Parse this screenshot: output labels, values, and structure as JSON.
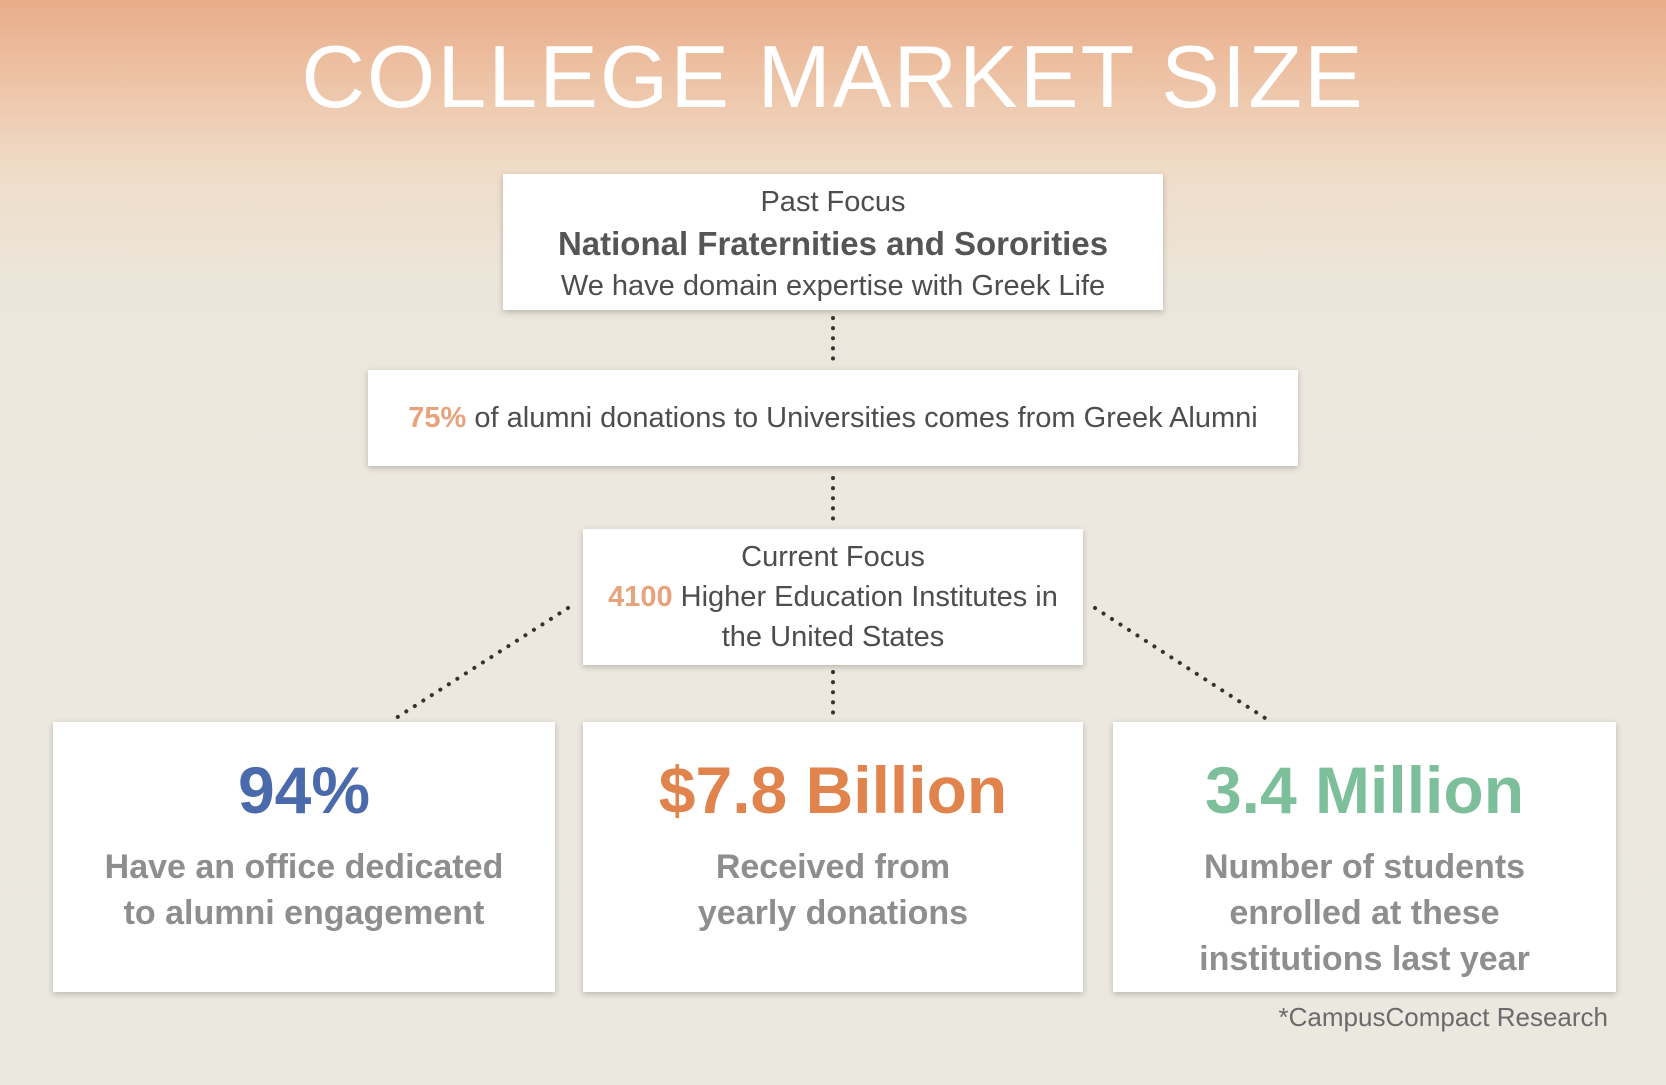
{
  "title": "COLLEGE MARKET SIZE",
  "past_focus": {
    "label": "Past Focus",
    "heading": "National Fraternities and Sororities",
    "subtext": "We have domain expertise with Greek Life"
  },
  "alumni_stat": {
    "highlight": "75%",
    "text": " of alumni donations to Universities comes from Greek Alumni"
  },
  "current_focus": {
    "label": "Current Focus",
    "highlight": "4100",
    "line1": " Higher Education Institutes in",
    "line2": "the United States"
  },
  "stats": [
    {
      "value": "94%",
      "color": "#4a6aab",
      "line1": "Have an office dedicated",
      "line2": "to alumni engagement",
      "line3": ""
    },
    {
      "value": "$7.8 Billion",
      "color": "#e0834c",
      "line1": "Received from",
      "line2": "yearly donations",
      "line3": ""
    },
    {
      "value": "3.4 Million",
      "color": "#7dbf9a",
      "line1": "Number of students",
      "line2": "enrolled at these",
      "line3": "institutions last year"
    }
  ],
  "source": "*CampusCompact Research"
}
